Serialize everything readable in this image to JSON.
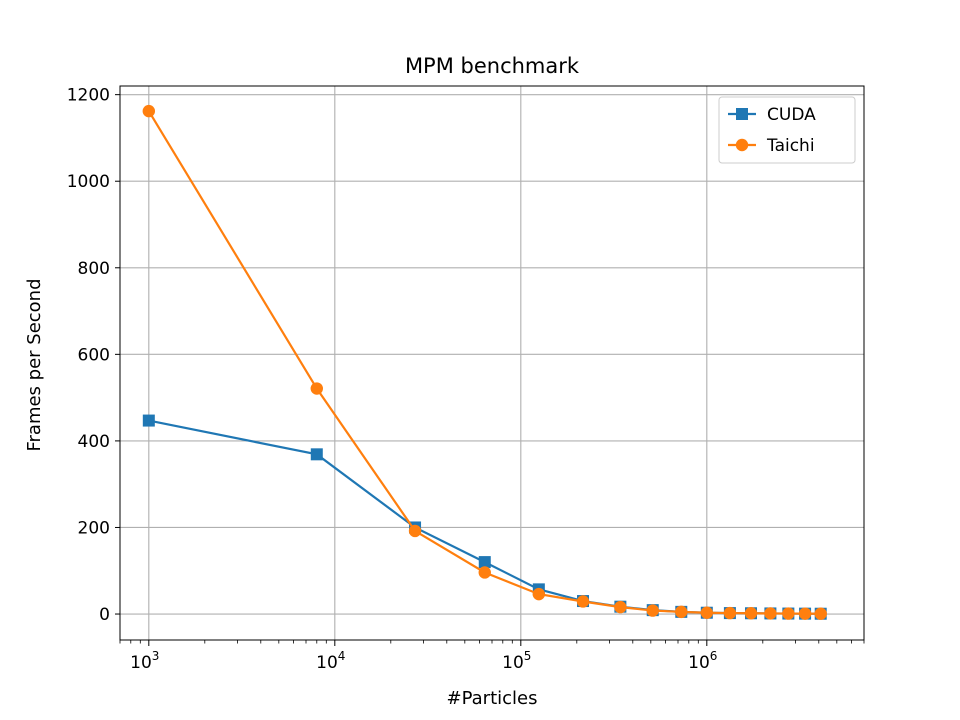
{
  "chart_data": {
    "type": "line",
    "title": "MPM benchmark",
    "xlabel": "#Particles",
    "ylabel": "Frames per Second",
    "xscale": "log",
    "xlim": [
      700,
      7000000
    ],
    "ylim": [
      -60,
      1220
    ],
    "grid": true,
    "legend_position": "top-right",
    "x_ticks": [
      {
        "value": 1000,
        "base": "10",
        "exp": "3"
      },
      {
        "value": 10000,
        "base": "10",
        "exp": "4"
      },
      {
        "value": 100000,
        "base": "10",
        "exp": "5"
      },
      {
        "value": 1000000,
        "base": "10",
        "exp": "6"
      }
    ],
    "y_ticks": [
      {
        "value": 0,
        "label": "0"
      },
      {
        "value": 200,
        "label": "200"
      },
      {
        "value": 400,
        "label": "400"
      },
      {
        "value": 600,
        "label": "600"
      },
      {
        "value": 800,
        "label": "800"
      },
      {
        "value": 1000,
        "label": "1000"
      },
      {
        "value": 1200,
        "label": "1200"
      }
    ],
    "x": [
      1000,
      8000,
      27000,
      64000,
      125000,
      216000,
      343000,
      512000,
      729000,
      1000000,
      1331000,
      1728000,
      2197000,
      2744000,
      3375000,
      4096000
    ],
    "series": [
      {
        "name": "CUDA",
        "color": "#1f77b4",
        "marker": "square",
        "values": [
          447,
          369,
          200,
          120,
          57,
          30,
          17,
          9,
          5,
          3,
          2.2,
          1.8,
          1.4,
          1.1,
          0.9,
          0.7
        ]
      },
      {
        "name": "Taichi",
        "color": "#ff7f0e",
        "marker": "circle",
        "values": [
          1162,
          521,
          192,
          96,
          46,
          29,
          16,
          8,
          5,
          3,
          2.2,
          1.8,
          1.4,
          1.1,
          0.9,
          0.7
        ]
      }
    ]
  }
}
